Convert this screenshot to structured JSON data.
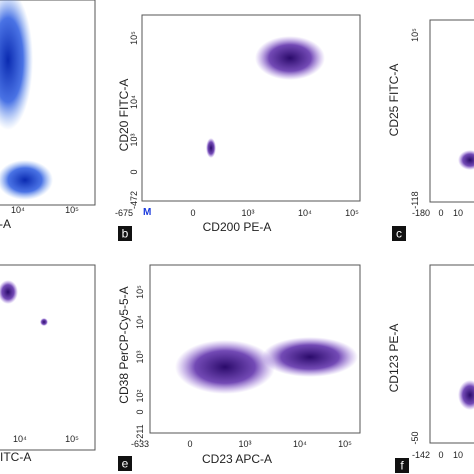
{
  "panels": [
    {
      "x_label": "-A",
      "x_ticks": [
        "10⁴",
        "10⁵"
      ]
    },
    {
      "letter": "b",
      "marker": "M",
      "x_label": "CD200 PE-A",
      "y_label": "CD20 FITC-A",
      "x_ticks": [
        "-675",
        "0",
        "10³",
        "10⁴",
        "10⁵"
      ],
      "y_ticks": [
        "10⁵",
        "10⁴",
        "10³",
        "0",
        "-472"
      ]
    },
    {
      "letter": "c",
      "y_label": "CD25 FITC-A",
      "x_ticks": [
        "-180",
        "0",
        "10"
      ],
      "y_ticks": [
        "10⁵",
        "-118"
      ]
    },
    {
      "x_label": "FITC-A",
      "x_ticks": [
        "10⁴",
        "10⁵"
      ]
    },
    {
      "letter": "e",
      "x_label": "CD23 APC-A",
      "y_label": "CD38 PerCP-Cy5-5-A",
      "x_ticks": [
        "-633",
        "0",
        "10³",
        "10⁴",
        "10⁵"
      ],
      "y_ticks": [
        "10⁵",
        "10⁴",
        "10³",
        "10²",
        "0",
        "-211"
      ]
    },
    {
      "letter": "f",
      "y_label": "CD123 PE-A",
      "x_ticks": [
        "-142",
        "0",
        "10"
      ],
      "y_ticks": [
        "-50"
      ]
    }
  ]
}
